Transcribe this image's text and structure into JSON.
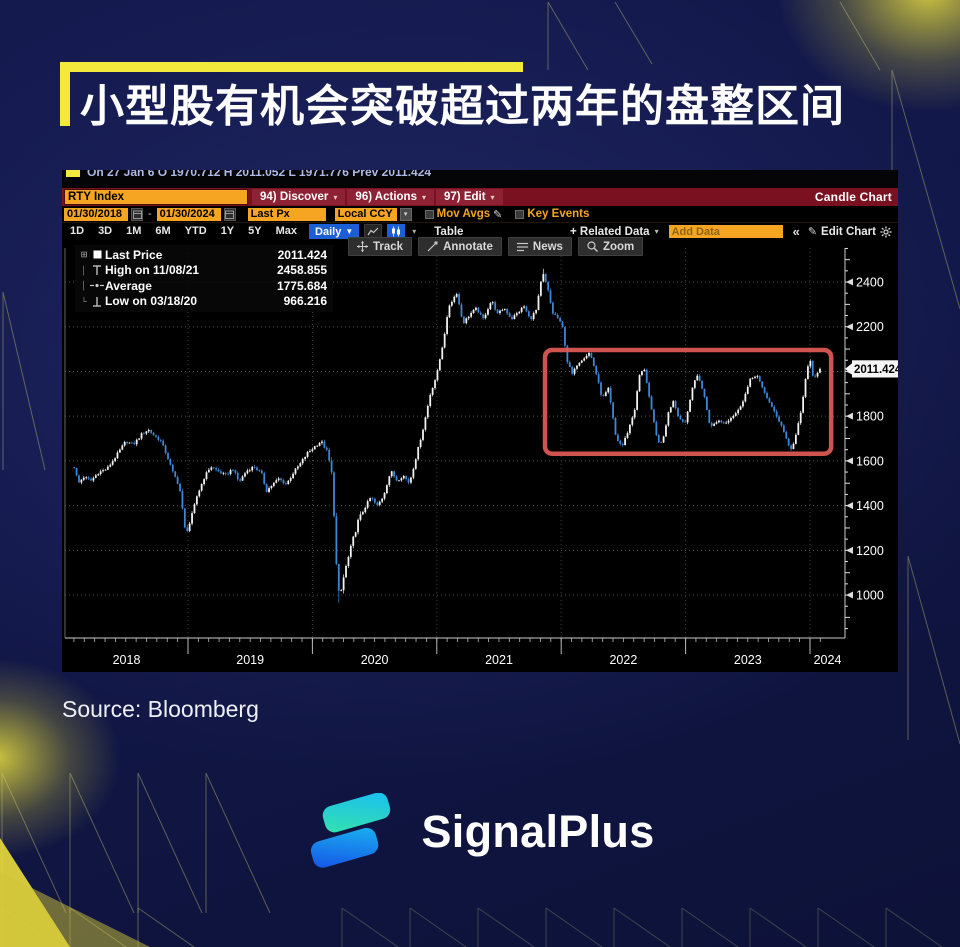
{
  "title": {
    "text": "小型股有机会突破超过两年的盘整区间"
  },
  "source": {
    "text": "Source: Bloomberg"
  },
  "brand": {
    "name": "SignalPlus"
  },
  "colors": {
    "accent_yellow": "#F3E83C",
    "bloomberg_red": "#7A1120",
    "bloomberg_amber": "#F5A521",
    "accent_blue": "#1A5FD6",
    "candle_up": "#F2F2F2",
    "candle_down": "#3F86D8",
    "highlight_red": "#E15A56"
  },
  "terminal": {
    "ticker_strip": {
      "text": "On 27 Jan 6 O 1970.712 H 2011.052 L 1971.776 Prev 2011.424"
    },
    "titlebar": {
      "security": "RTY Index",
      "menus": [
        {
          "label": "94) Discover"
        },
        {
          "label": "96) Actions"
        },
        {
          "label": "97) Edit"
        }
      ],
      "right_label": "Candle Chart"
    },
    "settings_row": {
      "date_from": "01/30/2018",
      "date_to": "01/30/2024",
      "price_field": "Last Px",
      "currency": "Local CCY",
      "mov_avgs_label": "Mov Avgs",
      "key_events_label": "Key Events"
    },
    "period_row": {
      "periods": [
        "1D",
        "3D",
        "1M",
        "6M",
        "YTD",
        "1Y",
        "5Y",
        "Max"
      ],
      "frequency": "Daily",
      "table_label": "Table",
      "related_data_label": "+ Related Data",
      "add_data_placeholder": "Add Data",
      "collapse_glyph": "«",
      "edit_chart_label": "Edit Chart"
    },
    "chart_toolbar": [
      {
        "icon": "track",
        "label": "Track"
      },
      {
        "icon": "annotate",
        "label": "Annotate"
      },
      {
        "icon": "news",
        "label": "News"
      },
      {
        "icon": "zoom",
        "label": "Zoom"
      }
    ],
    "legend": {
      "rows": [
        {
          "marker": "square",
          "label": "Last Price",
          "value": "2011.424"
        },
        {
          "marker": "high",
          "label": "High on 11/08/21",
          "value": "2458.855"
        },
        {
          "marker": "average",
          "label": "Average",
          "value": "1775.684"
        },
        {
          "marker": "low",
          "label": "Low on 03/18/20",
          "value": "966.216"
        }
      ]
    },
    "price_tag": "2011.424"
  },
  "chart_data": {
    "type": "candlestick",
    "instrument": "RTY Index",
    "frequency": "Daily",
    "date_range": [
      "01/30/2018",
      "01/30/2024"
    ],
    "x_tick_labels": [
      "2018",
      "2019",
      "2020",
      "2021",
      "2022",
      "2023",
      "2024"
    ],
    "y_ticks": [
      1000,
      1200,
      1400,
      1600,
      1800,
      2000,
      2200,
      2400
    ],
    "y_axis_side": "right",
    "grid": true,
    "last_price": 2011.424,
    "high": {
      "date": "11/08/21",
      "value": 2458.855
    },
    "average": 1775.684,
    "low": {
      "date": "03/18/20",
      "value": 966.216
    },
    "up_color": "#F2F2F2",
    "down_color": "#3F86D8",
    "highlight_box": {
      "t_start": 2021.87,
      "t_end": 2024.17,
      "price_top": 2096,
      "price_bottom": 1632,
      "color": "#E15A56"
    },
    "price_path_anchors": [
      [
        2018.085,
        1572
      ],
      [
        2018.12,
        1500
      ],
      [
        2018.16,
        1528
      ],
      [
        2018.22,
        1512
      ],
      [
        2018.28,
        1548
      ],
      [
        2018.35,
        1565
      ],
      [
        2018.42,
        1620
      ],
      [
        2018.5,
        1688
      ],
      [
        2018.56,
        1672
      ],
      [
        2018.63,
        1720
      ],
      [
        2018.68,
        1740
      ],
      [
        2018.73,
        1712
      ],
      [
        2018.78,
        1690
      ],
      [
        2018.83,
        1625
      ],
      [
        2018.88,
        1545
      ],
      [
        2018.93,
        1490
      ],
      [
        2018.98,
        1275
      ],
      [
        2019.02,
        1330
      ],
      [
        2019.07,
        1440
      ],
      [
        2019.13,
        1525
      ],
      [
        2019.18,
        1575
      ],
      [
        2019.24,
        1555
      ],
      [
        2019.3,
        1535
      ],
      [
        2019.36,
        1565
      ],
      [
        2019.41,
        1505
      ],
      [
        2019.47,
        1555
      ],
      [
        2019.53,
        1575
      ],
      [
        2019.59,
        1545
      ],
      [
        2019.63,
        1465
      ],
      [
        2019.68,
        1495
      ],
      [
        2019.73,
        1520
      ],
      [
        2019.79,
        1495
      ],
      [
        2019.85,
        1550
      ],
      [
        2019.9,
        1585
      ],
      [
        2019.96,
        1635
      ],
      [
        2020.02,
        1665
      ],
      [
        2020.07,
        1688
      ],
      [
        2020.12,
        1640
      ],
      [
        2020.16,
        1525
      ],
      [
        2020.2,
        1050
      ],
      [
        2020.22,
        985
      ],
      [
        2020.26,
        1105
      ],
      [
        2020.31,
        1210
      ],
      [
        2020.36,
        1320
      ],
      [
        2020.42,
        1390
      ],
      [
        2020.47,
        1438
      ],
      [
        2020.52,
        1398
      ],
      [
        2020.57,
        1442
      ],
      [
        2020.63,
        1555
      ],
      [
        2020.68,
        1512
      ],
      [
        2020.73,
        1535
      ],
      [
        2020.78,
        1500
      ],
      [
        2020.83,
        1610
      ],
      [
        2020.89,
        1745
      ],
      [
        2020.95,
        1905
      ],
      [
        2021.0,
        1985
      ],
      [
        2021.05,
        2128
      ],
      [
        2021.1,
        2295
      ],
      [
        2021.16,
        2352
      ],
      [
        2021.21,
        2215
      ],
      [
        2021.27,
        2258
      ],
      [
        2021.32,
        2282
      ],
      [
        2021.37,
        2232
      ],
      [
        2021.44,
        2318
      ],
      [
        2021.49,
        2255
      ],
      [
        2021.54,
        2285
      ],
      [
        2021.6,
        2235
      ],
      [
        2021.65,
        2262
      ],
      [
        2021.7,
        2292
      ],
      [
        2021.75,
        2232
      ],
      [
        2021.8,
        2275
      ],
      [
        2021.85,
        2442
      ],
      [
        2021.89,
        2372
      ],
      [
        2021.93,
        2262
      ],
      [
        2021.97,
        2242
      ],
      [
        2022.01,
        2198
      ],
      [
        2022.05,
        2042
      ],
      [
        2022.09,
        1985
      ],
      [
        2022.13,
        2035
      ],
      [
        2022.18,
        2062
      ],
      [
        2022.23,
        2085
      ],
      [
        2022.28,
        1992
      ],
      [
        2022.33,
        1878
      ],
      [
        2022.38,
        1922
      ],
      [
        2022.44,
        1702
      ],
      [
        2022.49,
        1665
      ],
      [
        2022.54,
        1738
      ],
      [
        2022.59,
        1828
      ],
      [
        2022.63,
        1985
      ],
      [
        2022.67,
        2012
      ],
      [
        2022.72,
        1842
      ],
      [
        2022.77,
        1698
      ],
      [
        2022.81,
        1672
      ],
      [
        2022.86,
        1812
      ],
      [
        2022.9,
        1872
      ],
      [
        2022.95,
        1788
      ],
      [
        2023.0,
        1772
      ],
      [
        2023.05,
        1922
      ],
      [
        2023.1,
        1988
      ],
      [
        2023.15,
        1888
      ],
      [
        2023.2,
        1748
      ],
      [
        2023.26,
        1782
      ],
      [
        2023.31,
        1768
      ],
      [
        2023.36,
        1792
      ],
      [
        2023.42,
        1822
      ],
      [
        2023.47,
        1882
      ],
      [
        2023.52,
        1962
      ],
      [
        2023.57,
        1988
      ],
      [
        2023.62,
        1918
      ],
      [
        2023.67,
        1868
      ],
      [
        2023.72,
        1808
      ],
      [
        2023.77,
        1762
      ],
      [
        2023.82,
        1682
      ],
      [
        2023.85,
        1648
      ],
      [
        2023.89,
        1722
      ],
      [
        2023.93,
        1825
      ],
      [
        2023.97,
        1992
      ],
      [
        2024.0,
        2052
      ],
      [
        2024.03,
        1962
      ],
      [
        2024.06,
        1988
      ],
      [
        2024.085,
        2011.424
      ]
    ]
  }
}
